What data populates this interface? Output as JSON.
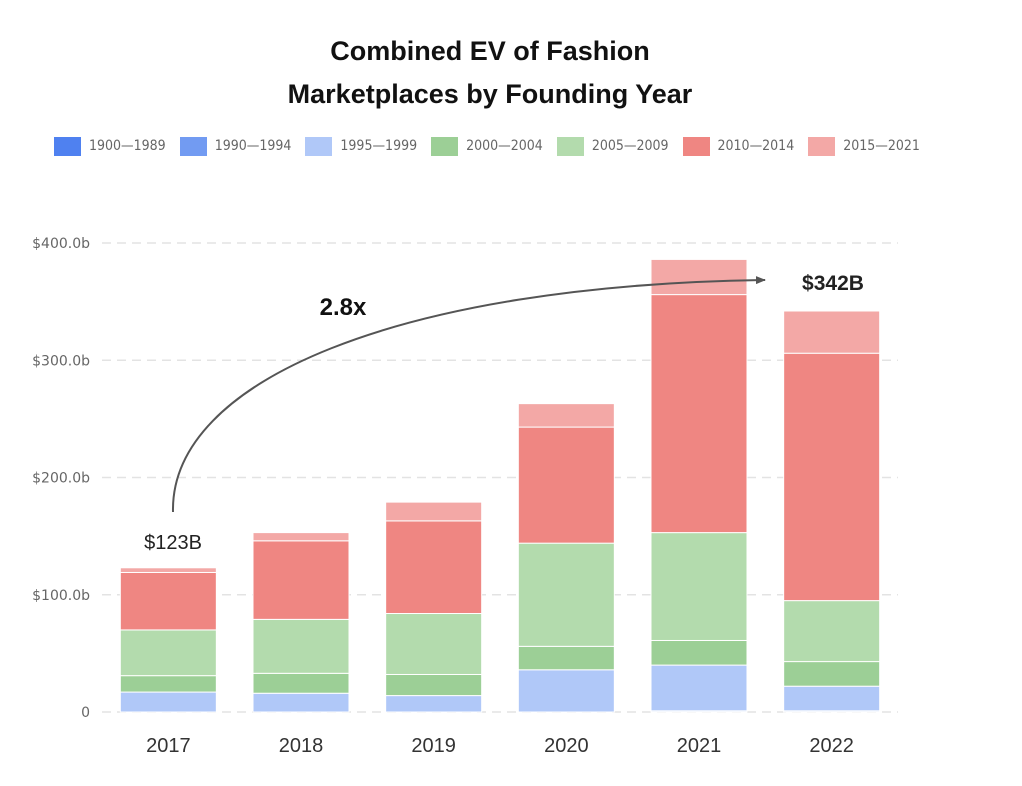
{
  "chart_data": {
    "type": "bar",
    "stacked": true,
    "title": "Combined EV of Fashion Marketplaces by Founding Year",
    "title_lines": [
      "Combined EV of Fashion",
      "Marketplaces by Founding Year"
    ],
    "categories": [
      "2017",
      "2018",
      "2019",
      "2020",
      "2021",
      "2022"
    ],
    "y_ticks": [
      "0",
      "$100.0b",
      "$200.0b",
      "$300.0b",
      "$400.0b"
    ],
    "ylim": [
      0,
      400
    ],
    "grid": true,
    "legend_position": "top",
    "series": [
      {
        "name": "1900—1989",
        "color": "#4f81f0",
        "values": [
          0,
          0,
          0,
          0,
          0,
          0
        ]
      },
      {
        "name": "1990—1994",
        "color": "#729bf2",
        "values": [
          0,
          0,
          0,
          0,
          1,
          1
        ]
      },
      {
        "name": "1995—1999",
        "color": "#b0c8f8",
        "values": [
          17,
          16,
          14,
          36,
          39,
          21
        ]
      },
      {
        "name": "2000—2004",
        "color": "#9ccf96",
        "values": [
          14,
          17,
          18,
          20,
          21,
          21
        ]
      },
      {
        "name": "2005—2009",
        "color": "#b3dbad",
        "values": [
          39,
          46,
          52,
          88,
          92,
          52
        ]
      },
      {
        "name": "2010—2014",
        "color": "#ef8682",
        "values": [
          49,
          67,
          79,
          99,
          203,
          211
        ]
      },
      {
        "name": "2015—2021",
        "color": "#f3a8a6",
        "values": [
          4,
          7,
          16,
          20,
          30,
          36
        ]
      }
    ],
    "annotations": {
      "start_label": "$123B",
      "end_label": "$342B",
      "multiplier": "2.8x"
    }
  }
}
